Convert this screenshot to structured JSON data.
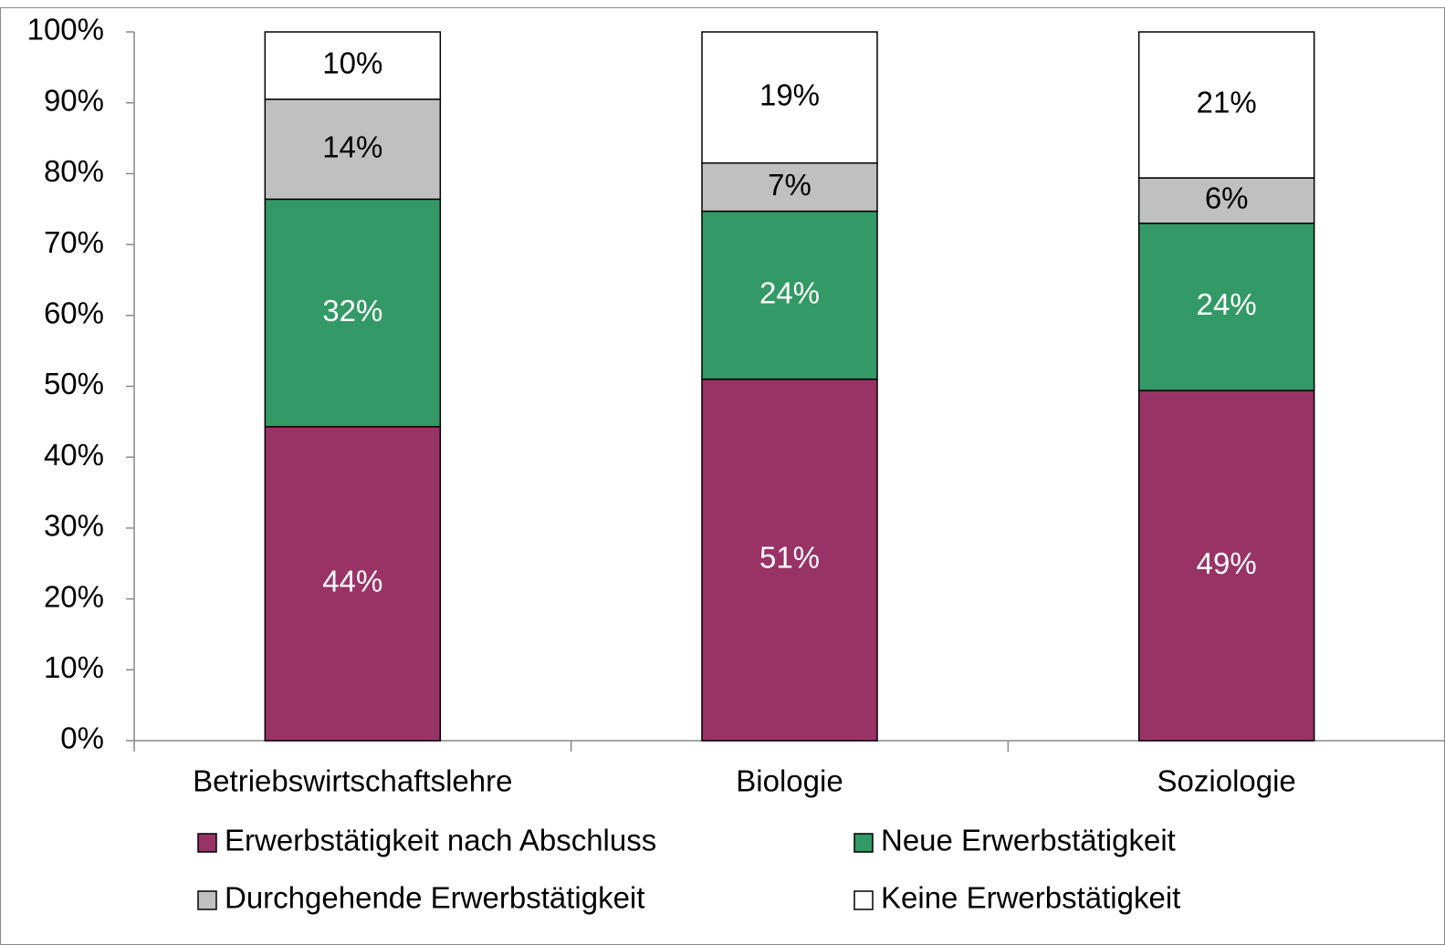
{
  "chart_data": {
    "type": "stacked_bar",
    "categories": [
      "Betriebswirtschaftslehre",
      "Biologie",
      "Soziologie"
    ],
    "series": [
      {
        "name": "Erwerbstätigkeit nach Abschluss",
        "color": "#993366",
        "values": [
          44.3,
          51.0,
          49.4
        ],
        "value_labels": [
          "44%",
          "51%",
          "49%"
        ]
      },
      {
        "name": "Neue Erwerbstätigkeit",
        "color": "#339966",
        "values": [
          32.1,
          23.7,
          23.6
        ],
        "value_labels": [
          "32%",
          "24%",
          "24%"
        ]
      },
      {
        "name": "Durchgehende Erwerbstätigkeit",
        "color": "#c0c0c0",
        "values": [
          14.1,
          6.8,
          6.4
        ],
        "value_labels": [
          "14%",
          "7%",
          "6%"
        ]
      },
      {
        "name": "Keine Erwerbstätigkeit",
        "color": "#ffffff",
        "values": [
          9.5,
          18.5,
          20.6
        ],
        "value_labels": [
          "10%",
          "19%",
          "21%"
        ]
      }
    ],
    "ylim": [
      0,
      100
    ],
    "yticks": [
      {
        "value": 0,
        "label": "0%"
      },
      {
        "value": 10,
        "label": "10%"
      },
      {
        "value": 20,
        "label": "20%"
      },
      {
        "value": 30,
        "label": "30%"
      },
      {
        "value": 40,
        "label": "40%"
      },
      {
        "value": 50,
        "label": "50%"
      },
      {
        "value": 60,
        "label": "60%"
      },
      {
        "value": 70,
        "label": "70%"
      },
      {
        "value": 80,
        "label": "80%"
      },
      {
        "value": 90,
        "label": "90%"
      },
      {
        "value": 100,
        "label": "100%"
      }
    ],
    "legend": "bottom"
  }
}
